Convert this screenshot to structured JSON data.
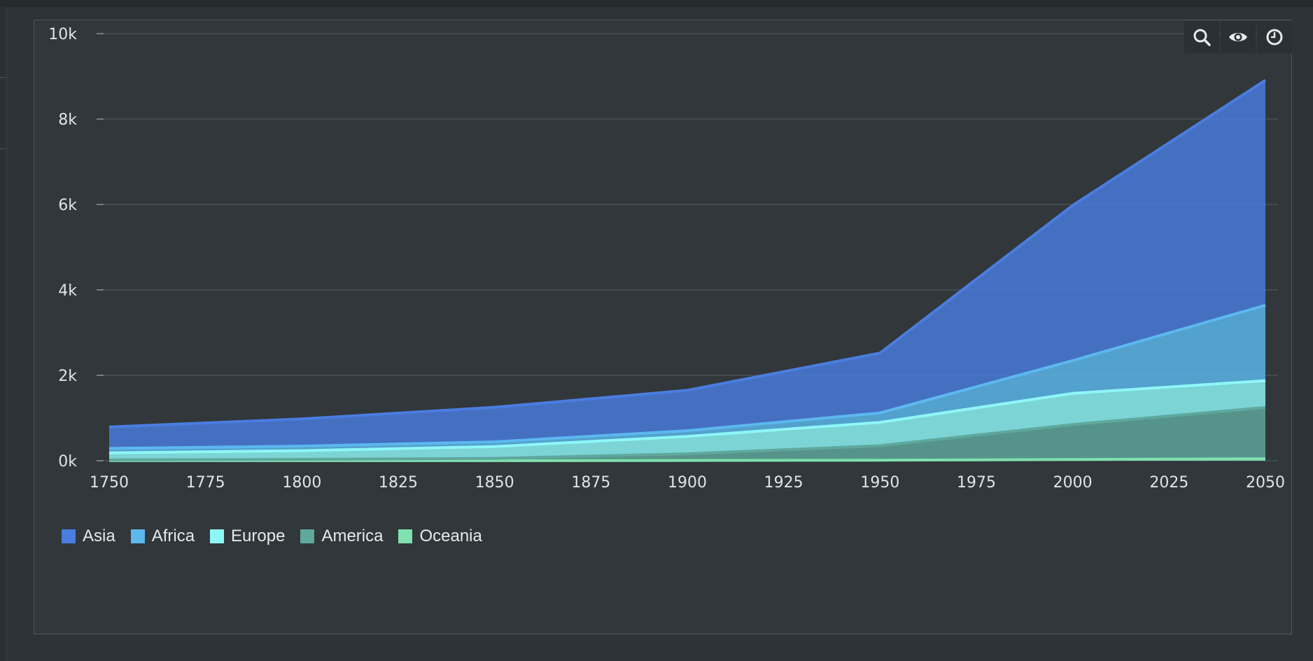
{
  "toolbox": {
    "icons": [
      "search-icon",
      "eye-icon",
      "clock-icon"
    ]
  },
  "chart_data": {
    "type": "area",
    "stacked": true,
    "x": [
      1750,
      1800,
      1850,
      1900,
      1950,
      2000,
      2050
    ],
    "x_ticks": [
      "1750",
      "1775",
      "1800",
      "1825",
      "1850",
      "1875",
      "1900",
      "1925",
      "1950",
      "1975",
      "2000",
      "2025",
      "2050"
    ],
    "y_ticks": [
      "0k",
      "2k",
      "4k",
      "6k",
      "8k",
      "10k"
    ],
    "ylim": [
      0,
      10000
    ],
    "xlim": [
      1750,
      2050
    ],
    "grid": true,
    "legend_position": "bottom-left",
    "series": [
      {
        "name": "Oceania",
        "color": "#7fe0b0",
        "values": [
          2,
          2,
          2,
          6,
          13,
          30,
          46
        ]
      },
      {
        "name": "America",
        "color": "#5fa89e",
        "values": [
          18,
          31,
          54,
          156,
          339,
          818,
          1201
        ]
      },
      {
        "name": "Europe",
        "color": "#8ff6f7",
        "values": [
          163,
          203,
          276,
          408,
          547,
          729,
          628
        ]
      },
      {
        "name": "Africa",
        "color": "#5cb8ee",
        "values": [
          106,
          107,
          111,
          133,
          221,
          767,
          1766
        ]
      },
      {
        "name": "Asia",
        "color": "#4a7de0",
        "values": [
          502,
          635,
          809,
          947,
          1402,
          3634,
          5268
        ]
      }
    ],
    "legend": [
      "Asia",
      "Africa",
      "Europe",
      "America",
      "Oceania"
    ]
  }
}
